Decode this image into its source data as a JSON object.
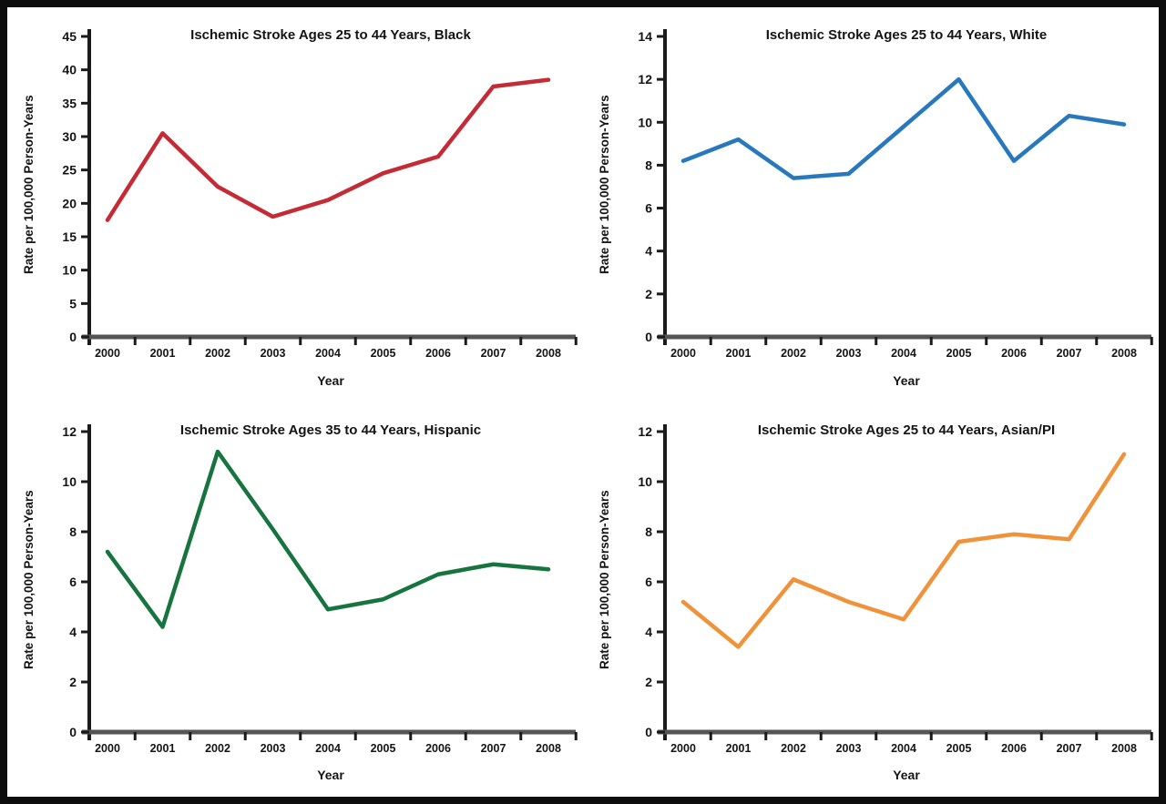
{
  "figure": {
    "background_color": "#ffffff",
    "frame_color": "#0d0d0d",
    "axis_color": "#1b1b1b",
    "x_axis_bar_color": "#555555",
    "text_color": "#141414"
  },
  "chart_data": [
    {
      "type": "line",
      "title": "Ischemic Stroke Ages 25 to 44 Years, Black",
      "xlabel": "Year",
      "ylabel": "Rate per 100,000 Person-Years",
      "color": "#c42b34",
      "categories": [
        "2000",
        "2001",
        "2002",
        "2003",
        "2004",
        "2005",
        "2006",
        "2007",
        "2008"
      ],
      "values": [
        17.5,
        30.5,
        22.5,
        18.0,
        20.5,
        24.5,
        27.0,
        37.5,
        38.5
      ],
      "ylim": [
        0,
        45
      ],
      "yticks": [
        0,
        5,
        10,
        15,
        20,
        25,
        30,
        35,
        40,
        45
      ],
      "grid": false,
      "legend": "none"
    },
    {
      "type": "line",
      "title": "Ischemic Stroke Ages 25 to 44 Years, White",
      "xlabel": "Year",
      "ylabel": "Rate per 100,000 Person-Years",
      "color": "#2878bd",
      "categories": [
        "2000",
        "2001",
        "2002",
        "2003",
        "2004",
        "2005",
        "2006",
        "2007",
        "2008"
      ],
      "values": [
        8.2,
        9.2,
        7.4,
        7.6,
        9.8,
        12.0,
        8.2,
        10.3,
        9.9
      ],
      "ylim": [
        0,
        14
      ],
      "yticks": [
        0,
        2,
        4,
        6,
        8,
        10,
        12,
        14
      ],
      "grid": false,
      "legend": "none"
    },
    {
      "type": "line",
      "title": "Ischemic Stroke Ages 35 to 44 Years, Hispanic",
      "xlabel": "Year",
      "ylabel": "Rate per 100,000 Person-Years",
      "color": "#17743f",
      "categories": [
        "2000",
        "2001",
        "2002",
        "2003",
        "2004",
        "2005",
        "2006",
        "2007",
        "2008"
      ],
      "values": [
        7.2,
        4.2,
        11.2,
        8.1,
        4.9,
        5.3,
        6.3,
        6.7,
        6.5
      ],
      "ylim": [
        0,
        12
      ],
      "yticks": [
        0,
        2,
        4,
        6,
        8,
        10,
        12
      ],
      "grid": false,
      "legend": "none"
    },
    {
      "type": "line",
      "title": "Ischemic Stroke Ages 25 to 44 Years, Asian/PI",
      "xlabel": "Year",
      "ylabel": "Rate per 100,000 Person-Years",
      "color": "#f0923a",
      "categories": [
        "2000",
        "2001",
        "2002",
        "2003",
        "2004",
        "2005",
        "2006",
        "2007",
        "2008"
      ],
      "values": [
        5.2,
        3.4,
        6.1,
        5.2,
        4.5,
        7.6,
        7.9,
        7.7,
        11.1
      ],
      "ylim": [
        0,
        12
      ],
      "yticks": [
        0,
        2,
        4,
        6,
        8,
        10,
        12
      ],
      "grid": false,
      "legend": "none"
    }
  ]
}
